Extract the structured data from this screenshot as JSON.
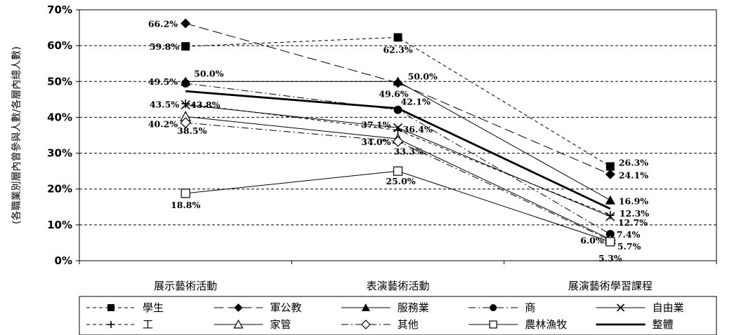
{
  "chart_data": {
    "type": "line",
    "title": "",
    "ylabel": "(各職業別層內曾參與人數/各層內總人數)",
    "xlabel": "",
    "ylim": [
      0,
      70
    ],
    "yticks": [
      "0%",
      "10%",
      "20%",
      "30%",
      "40%",
      "50%",
      "60%",
      "70%"
    ],
    "ytick_values": [
      0,
      10,
      20,
      30,
      40,
      50,
      60,
      70
    ],
    "grid": "horizontal dashed",
    "legend_position": "bottom",
    "categories": [
      "展示藝術活動",
      "表演藝術活動",
      "展演藝術學習課程"
    ],
    "series": [
      {
        "name": "學生",
        "values": [
          59.8,
          62.3,
          26.3
        ],
        "labels": [
          "59.8%",
          "62.3%",
          "26.3%"
        ],
        "marker": "square-filled",
        "dash": "short-dash",
        "color": "#000000"
      },
      {
        "name": "軍公教",
        "values": [
          66.2,
          49.6,
          24.1
        ],
        "labels": [
          "66.2%",
          "49.6%",
          "24.1%"
        ],
        "marker": "diamond-filled",
        "dash": "long-dash",
        "color": "#000000"
      },
      {
        "name": "服務業",
        "values": [
          50.0,
          50.0,
          16.9
        ],
        "labels": [
          "50.0%",
          "50.0%",
          "16.9%"
        ],
        "marker": "triangle-filled",
        "dash": "solid",
        "color": "#000000"
      },
      {
        "name": "商",
        "values": [
          49.5,
          42.1,
          7.4
        ],
        "labels": [
          "49.5%",
          "42.1%",
          "7.4%"
        ],
        "marker": "circle-filled",
        "dash": "dash-dot",
        "color": "#000000"
      },
      {
        "name": "自由業",
        "values": [
          43.5,
          37.1,
          12.3
        ],
        "labels": [
          "43.5%",
          "37.1%",
          "12.3%"
        ],
        "marker": "x",
        "dash": "solid",
        "color": "#000000"
      },
      {
        "name": "工",
        "values": [
          43.8,
          36.4,
          12.7
        ],
        "labels": [
          "43.8%",
          "36.4%",
          "12.7%"
        ],
        "marker": "plus",
        "dash": "short-dash",
        "color": "#000000"
      },
      {
        "name": "家管",
        "values": [
          40.2,
          34.0,
          6.0
        ],
        "labels": [
          "40.2%",
          "34.0%",
          "6.0%"
        ],
        "marker": "triangle-open",
        "dash": "solid",
        "color": "#000000"
      },
      {
        "name": "其他",
        "values": [
          38.5,
          33.3,
          5.7
        ],
        "labels": [
          "38.5%",
          "33.3%",
          "5.7%"
        ],
        "marker": "diamond-open",
        "dash": "dash-dot",
        "color": "#000000"
      },
      {
        "name": "農林漁牧",
        "values": [
          18.8,
          25.0,
          5.3
        ],
        "labels": [
          "18.8%",
          "25.0%",
          "5.3%"
        ],
        "marker": "square-open",
        "dash": "solid",
        "color": "#000000"
      },
      {
        "name": "整體",
        "values": [
          47.3,
          42.5,
          14.5
        ],
        "marker": "none",
        "dash": "solid-bold",
        "color": "#000000"
      }
    ]
  }
}
